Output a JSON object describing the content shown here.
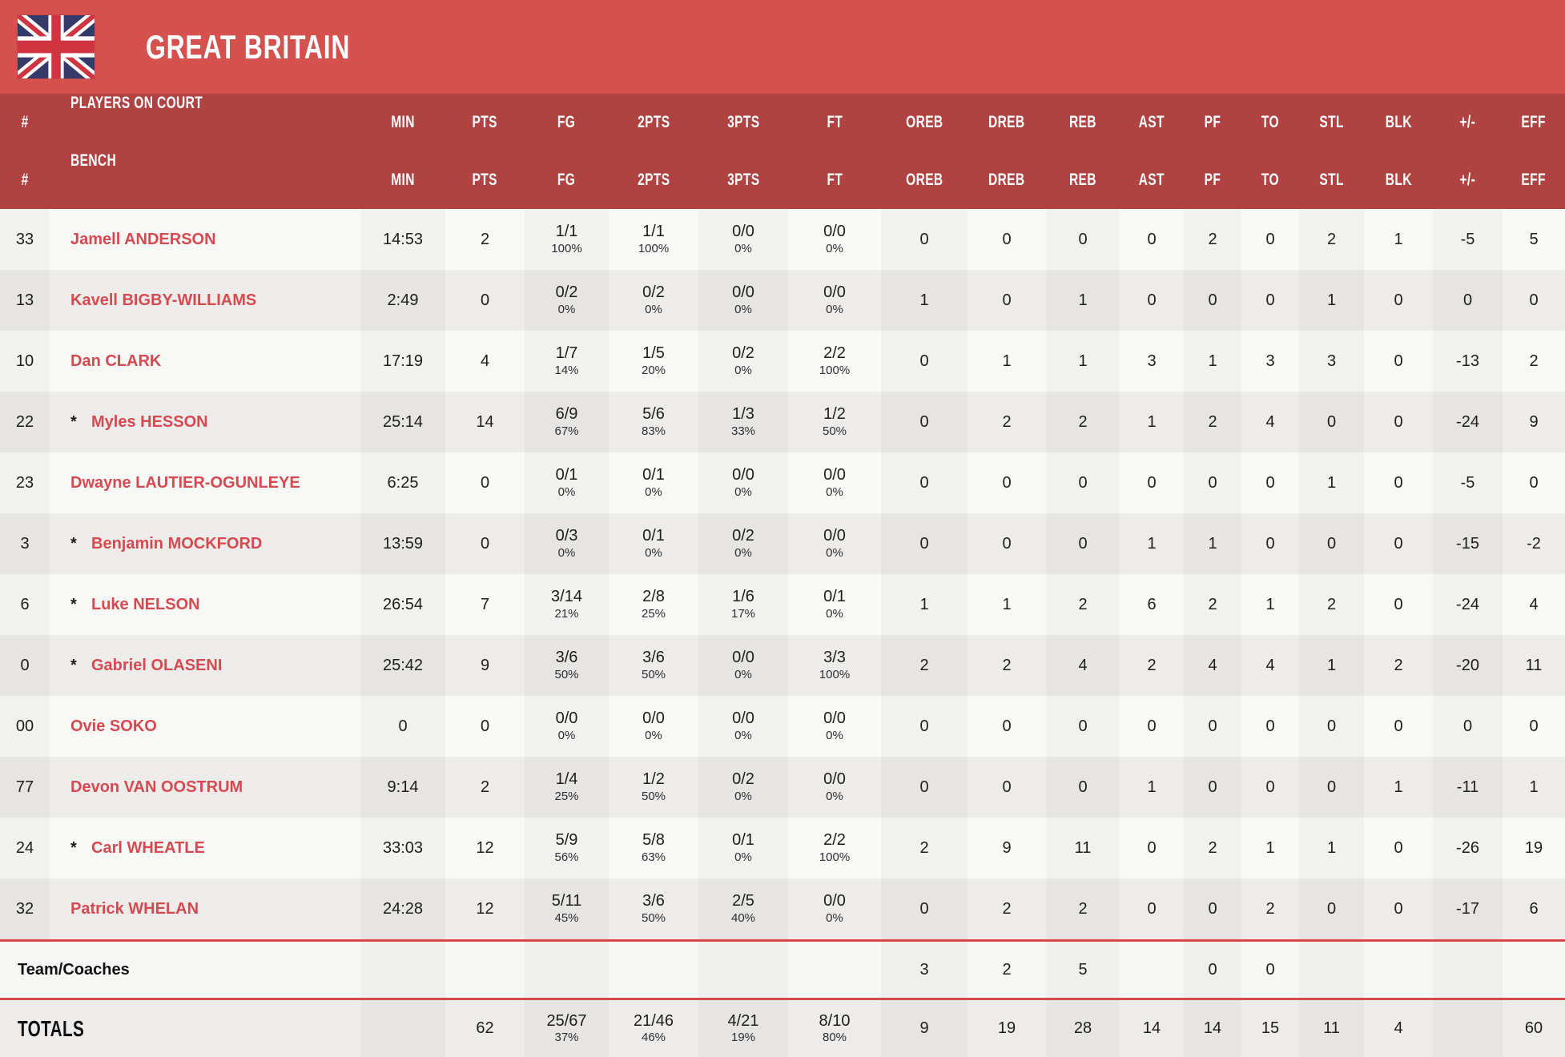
{
  "team": {
    "name": "GREAT BRITAIN",
    "flag_icon": "union-jack"
  },
  "colors": {
    "banner": "#d5514e",
    "header_band": "#b04241",
    "player_name": "#d6494f",
    "separator": "#d7484b",
    "row_odd": "#f8f8f7",
    "row_even": "#edeceb"
  },
  "table": {
    "headers": {
      "num": "#",
      "on_court": "PLAYERS ON COURT",
      "bench": "BENCH",
      "stats": [
        "MIN",
        "PTS",
        "FG",
        "2PTS",
        "3PTS",
        "FT",
        "OREB",
        "DREB",
        "REB",
        "AST",
        "PF",
        "TO",
        "STL",
        "BLK",
        "+/-",
        "EFF"
      ]
    },
    "players": [
      {
        "num": "33",
        "starter": false,
        "name": "Jamell ANDERSON",
        "min": "14:53",
        "pts": "2",
        "fg": "1/1",
        "fg_pct": "100%",
        "p2": "1/1",
        "p2_pct": "100%",
        "p3": "0/0",
        "p3_pct": "0%",
        "ft": "0/0",
        "ft_pct": "0%",
        "oreb": "0",
        "dreb": "0",
        "reb": "0",
        "ast": "0",
        "pf": "2",
        "to": "0",
        "stl": "2",
        "blk": "1",
        "pm": "-5",
        "eff": "5"
      },
      {
        "num": "13",
        "starter": false,
        "name": "Kavell BIGBY-WILLIAMS",
        "min": "2:49",
        "pts": "0",
        "fg": "0/2",
        "fg_pct": "0%",
        "p2": "0/2",
        "p2_pct": "0%",
        "p3": "0/0",
        "p3_pct": "0%",
        "ft": "0/0",
        "ft_pct": "0%",
        "oreb": "1",
        "dreb": "0",
        "reb": "1",
        "ast": "0",
        "pf": "0",
        "to": "0",
        "stl": "1",
        "blk": "0",
        "pm": "0",
        "eff": "0"
      },
      {
        "num": "10",
        "starter": false,
        "name": "Dan CLARK",
        "min": "17:19",
        "pts": "4",
        "fg": "1/7",
        "fg_pct": "14%",
        "p2": "1/5",
        "p2_pct": "20%",
        "p3": "0/2",
        "p3_pct": "0%",
        "ft": "2/2",
        "ft_pct": "100%",
        "oreb": "0",
        "dreb": "1",
        "reb": "1",
        "ast": "3",
        "pf": "1",
        "to": "3",
        "stl": "3",
        "blk": "0",
        "pm": "-13",
        "eff": "2"
      },
      {
        "num": "22",
        "starter": true,
        "name": "Myles HESSON",
        "min": "25:14",
        "pts": "14",
        "fg": "6/9",
        "fg_pct": "67%",
        "p2": "5/6",
        "p2_pct": "83%",
        "p3": "1/3",
        "p3_pct": "33%",
        "ft": "1/2",
        "ft_pct": "50%",
        "oreb": "0",
        "dreb": "2",
        "reb": "2",
        "ast": "1",
        "pf": "2",
        "to": "4",
        "stl": "0",
        "blk": "0",
        "pm": "-24",
        "eff": "9"
      },
      {
        "num": "23",
        "starter": false,
        "name": "Dwayne LAUTIER-OGUNLEYE",
        "min": "6:25",
        "pts": "0",
        "fg": "0/1",
        "fg_pct": "0%",
        "p2": "0/1",
        "p2_pct": "0%",
        "p3": "0/0",
        "p3_pct": "0%",
        "ft": "0/0",
        "ft_pct": "0%",
        "oreb": "0",
        "dreb": "0",
        "reb": "0",
        "ast": "0",
        "pf": "0",
        "to": "0",
        "stl": "1",
        "blk": "0",
        "pm": "-5",
        "eff": "0"
      },
      {
        "num": "3",
        "starter": true,
        "name": "Benjamin MOCKFORD",
        "min": "13:59",
        "pts": "0",
        "fg": "0/3",
        "fg_pct": "0%",
        "p2": "0/1",
        "p2_pct": "0%",
        "p3": "0/2",
        "p3_pct": "0%",
        "ft": "0/0",
        "ft_pct": "0%",
        "oreb": "0",
        "dreb": "0",
        "reb": "0",
        "ast": "1",
        "pf": "1",
        "to": "0",
        "stl": "0",
        "blk": "0",
        "pm": "-15",
        "eff": "-2"
      },
      {
        "num": "6",
        "starter": true,
        "name": "Luke NELSON",
        "min": "26:54",
        "pts": "7",
        "fg": "3/14",
        "fg_pct": "21%",
        "p2": "2/8",
        "p2_pct": "25%",
        "p3": "1/6",
        "p3_pct": "17%",
        "ft": "0/1",
        "ft_pct": "0%",
        "oreb": "1",
        "dreb": "1",
        "reb": "2",
        "ast": "6",
        "pf": "2",
        "to": "1",
        "stl": "2",
        "blk": "0",
        "pm": "-24",
        "eff": "4"
      },
      {
        "num": "0",
        "starter": true,
        "name": "Gabriel OLASENI",
        "min": "25:42",
        "pts": "9",
        "fg": "3/6",
        "fg_pct": "50%",
        "p2": "3/6",
        "p2_pct": "50%",
        "p3": "0/0",
        "p3_pct": "0%",
        "ft": "3/3",
        "ft_pct": "100%",
        "oreb": "2",
        "dreb": "2",
        "reb": "4",
        "ast": "2",
        "pf": "4",
        "to": "4",
        "stl": "1",
        "blk": "2",
        "pm": "-20",
        "eff": "11"
      },
      {
        "num": "00",
        "starter": false,
        "name": "Ovie SOKO",
        "min": "0",
        "pts": "0",
        "fg": "0/0",
        "fg_pct": "0%",
        "p2": "0/0",
        "p2_pct": "0%",
        "p3": "0/0",
        "p3_pct": "0%",
        "ft": "0/0",
        "ft_pct": "0%",
        "oreb": "0",
        "dreb": "0",
        "reb": "0",
        "ast": "0",
        "pf": "0",
        "to": "0",
        "stl": "0",
        "blk": "0",
        "pm": "0",
        "eff": "0"
      },
      {
        "num": "77",
        "starter": false,
        "name": "Devon VAN OOSTRUM",
        "min": "9:14",
        "pts": "2",
        "fg": "1/4",
        "fg_pct": "25%",
        "p2": "1/2",
        "p2_pct": "50%",
        "p3": "0/2",
        "p3_pct": "0%",
        "ft": "0/0",
        "ft_pct": "0%",
        "oreb": "0",
        "dreb": "0",
        "reb": "0",
        "ast": "1",
        "pf": "0",
        "to": "0",
        "stl": "0",
        "blk": "1",
        "pm": "-11",
        "eff": "1"
      },
      {
        "num": "24",
        "starter": true,
        "name": "Carl WHEATLE",
        "min": "33:03",
        "pts": "12",
        "fg": "5/9",
        "fg_pct": "56%",
        "p2": "5/8",
        "p2_pct": "63%",
        "p3": "0/1",
        "p3_pct": "0%",
        "ft": "2/2",
        "ft_pct": "100%",
        "oreb": "2",
        "dreb": "9",
        "reb": "11",
        "ast": "0",
        "pf": "2",
        "to": "1",
        "stl": "1",
        "blk": "0",
        "pm": "-26",
        "eff": "19"
      },
      {
        "num": "32",
        "starter": false,
        "name": "Patrick WHELAN",
        "min": "24:28",
        "pts": "12",
        "fg": "5/11",
        "fg_pct": "45%",
        "p2": "3/6",
        "p2_pct": "50%",
        "p3": "2/5",
        "p3_pct": "40%",
        "ft": "0/0",
        "ft_pct": "0%",
        "oreb": "0",
        "dreb": "2",
        "reb": "2",
        "ast": "0",
        "pf": "0",
        "to": "2",
        "stl": "0",
        "blk": "0",
        "pm": "-17",
        "eff": "6"
      }
    ],
    "team_row": {
      "label": "Team/Coaches",
      "oreb": "3",
      "dreb": "2",
      "reb": "5",
      "pf": "0",
      "to": "0"
    },
    "totals": {
      "label": "TOTALS",
      "pts": "62",
      "fg": "25/67",
      "fg_pct": "37%",
      "p2": "21/46",
      "p2_pct": "46%",
      "p3": "4/21",
      "p3_pct": "19%",
      "ft": "8/10",
      "ft_pct": "80%",
      "oreb": "9",
      "dreb": "19",
      "reb": "28",
      "ast": "14",
      "pf": "14",
      "to": "15",
      "stl": "11",
      "blk": "4",
      "pm": "",
      "eff": "60"
    }
  }
}
